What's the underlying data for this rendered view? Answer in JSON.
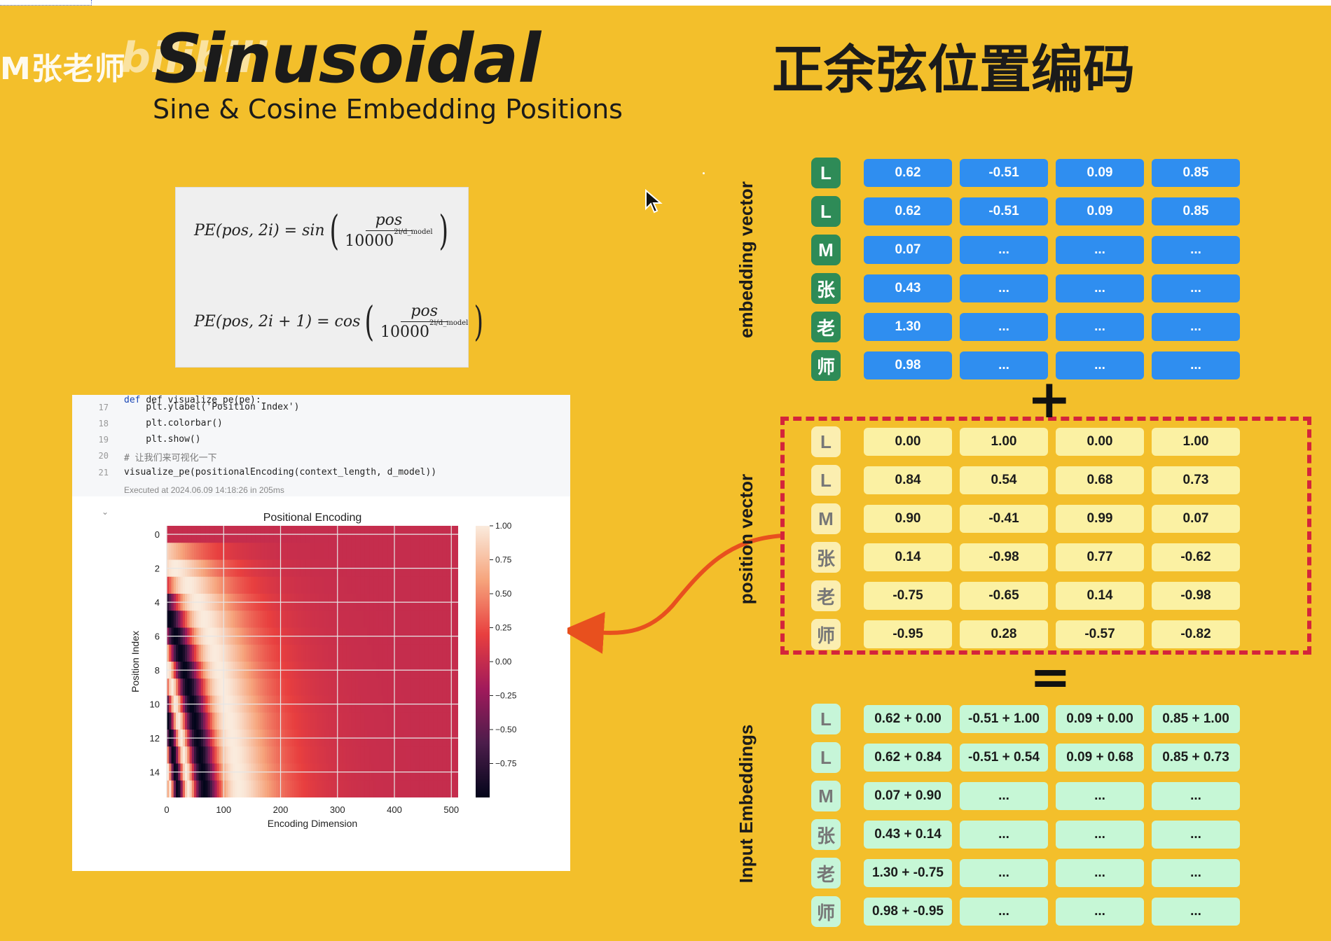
{
  "watermark": {
    "text": "M张老师",
    "logo_text": "bilibili"
  },
  "title": "Sinusoidal",
  "subtitle": "Sine & Cosine Embedding Positions",
  "cn_title": "正余弦位置编码",
  "formula": {
    "line1": {
      "lhs": "PE(pos, 2i) = sin",
      "num": "pos",
      "den": "10000",
      "exp": "2i/d_model"
    },
    "line2": {
      "lhs": "PE(pos, 2i + 1) = cos",
      "num": "pos",
      "den": "10000",
      "exp": "2i/d_model"
    }
  },
  "notebook": {
    "header": "def visualize_pe(pe):",
    "lines": [
      {
        "n": "17",
        "text": "    plt.ylabel('Position Index')"
      },
      {
        "n": "18",
        "text": "    plt.colorbar()"
      },
      {
        "n": "19",
        "text": "    plt.show()"
      },
      {
        "n": "20",
        "text": "# 让我们来可视化一下"
      },
      {
        "n": "21",
        "text": "visualize_pe(positionalEncoding(context_length, d_model))"
      }
    ],
    "executed": "Executed at 2024.06.09 14:18:26 in 205ms",
    "chevron": "⌄"
  },
  "chart_data": {
    "type": "heatmap",
    "title": "Positional Encoding",
    "xlabel": "Encoding Dimension",
    "ylabel": "Position Index",
    "x_ticks": [
      "0",
      "100",
      "200",
      "300",
      "400",
      "500"
    ],
    "y_ticks": [
      "0",
      "2",
      "4",
      "6",
      "8",
      "10",
      "12",
      "14"
    ],
    "xlim": [
      0,
      512
    ],
    "ylim": [
      0,
      16
    ],
    "colorbar_ticks": [
      "1.00",
      "0.75",
      "0.50",
      "0.25",
      "0.00",
      "−0.25",
      "−0.50",
      "−0.75"
    ],
    "colorbar_range": [
      -1,
      1
    ],
    "grid": true
  },
  "labels": {
    "embedding": "embedding vector",
    "position": "position vector",
    "input": "Input Embeddings"
  },
  "tokens": [
    "L",
    "L",
    "M",
    "张",
    "老",
    "师"
  ],
  "operators": {
    "plus": "+",
    "equals": "="
  },
  "embedding_rows": [
    [
      "0.62",
      "-0.51",
      "0.09",
      "0.85"
    ],
    [
      "0.62",
      "-0.51",
      "0.09",
      "0.85"
    ],
    [
      "0.07",
      "...",
      "...",
      "..."
    ],
    [
      "0.43",
      "...",
      "...",
      "..."
    ],
    [
      "1.30",
      "...",
      "...",
      "..."
    ],
    [
      "0.98",
      "...",
      "...",
      "..."
    ]
  ],
  "position_rows": [
    [
      "0.00",
      "1.00",
      "0.00",
      "1.00"
    ],
    [
      "0.84",
      "0.54",
      "0.68",
      "0.73"
    ],
    [
      "0.90",
      "-0.41",
      "0.99",
      "0.07"
    ],
    [
      "0.14",
      "-0.98",
      "0.77",
      "-0.62"
    ],
    [
      "-0.75",
      "-0.65",
      "0.14",
      "-0.98"
    ],
    [
      "-0.95",
      "0.28",
      "-0.57",
      "-0.82"
    ]
  ],
  "input_rows": [
    [
      "0.62 + 0.00",
      "-0.51 + 1.00",
      "0.09 + 0.00",
      "0.85 + 1.00"
    ],
    [
      "0.62 + 0.84",
      "-0.51 + 0.54",
      "0.09 + 0.68",
      "0.85 + 0.73"
    ],
    [
      "0.07 + 0.90",
      "...",
      "...",
      "..."
    ],
    [
      "0.43 + 0.14",
      "...",
      "...",
      "..."
    ],
    [
      "1.30 + -0.75",
      "...",
      "...",
      "..."
    ],
    [
      "0.98 + -0.95",
      "...",
      "...",
      "..."
    ]
  ],
  "colors": {
    "background": "#f3bf2b",
    "embedding": "#2f8ef0",
    "position": "#fbf1a3",
    "input": "#c6f7d6",
    "dash": "#d4243b",
    "arrow": "#e8501e"
  }
}
